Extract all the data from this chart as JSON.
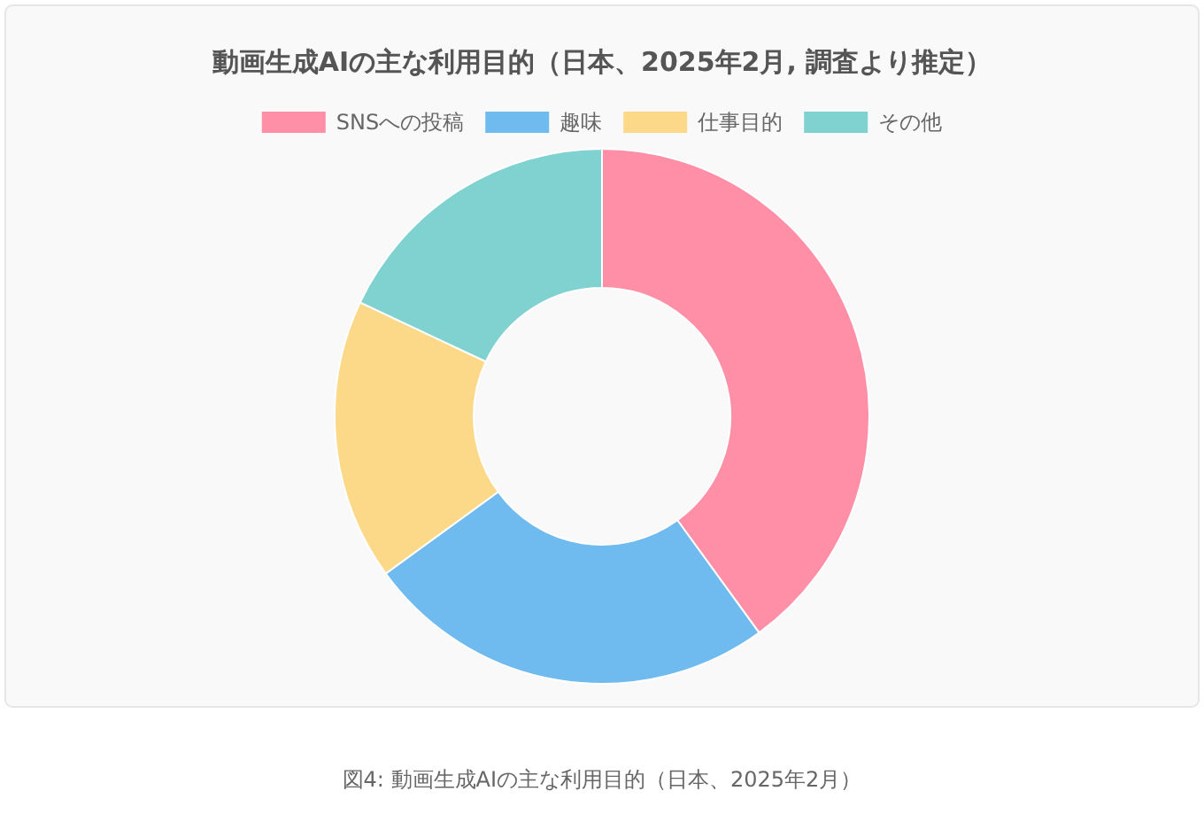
{
  "chart_data": {
    "type": "donut",
    "title": "動画生成AIの主な利用目的（日本、2025年2月, 調査より推定）",
    "categories": [
      "SNSへの投稿",
      "趣味",
      "仕事目的",
      "その他"
    ],
    "values": [
      40,
      25,
      17,
      18
    ],
    "colors": [
      "#ff8fa6",
      "#6fbaee",
      "#fcd988",
      "#80d2d1"
    ],
    "legend": "top",
    "annotations": [
      "図4: 動画生成AIの主な利用目的（日本、2025年2月）"
    ]
  }
}
